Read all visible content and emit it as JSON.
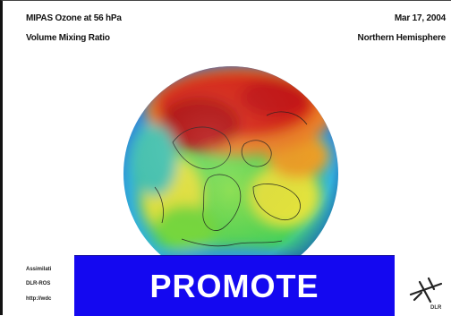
{
  "header": {
    "title_line1": "MIPAS Ozone at 56 hPa",
    "title_line2": "Volume Mixing Ratio",
    "date": "Mar 17, 2004",
    "region": "Northern Hemisphere"
  },
  "footer": {
    "line1": "Assimilati",
    "line2": "DLR-ROS",
    "line3": "http://wdc"
  },
  "banner": {
    "label": "PROMOTE"
  },
  "logo": {
    "text": "DLR"
  },
  "colors": {
    "banner": "#1408f0",
    "ozone_high": "#d41414",
    "ozone_mid": "#f0d23c",
    "ozone_low": "#3cb4e6"
  }
}
